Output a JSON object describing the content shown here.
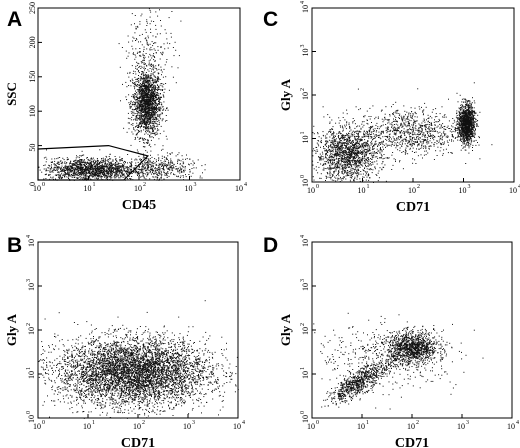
{
  "chart_data": [
    {
      "panel": "A",
      "type": "scatter",
      "xlabel": "CD45",
      "ylabel": "SSC",
      "x_scale": "log",
      "y_scale": "linear",
      "xlim": [
        1,
        10000
      ],
      "ylim": [
        0,
        250
      ],
      "x_ticks": [
        "10",
        "10",
        "10",
        "10",
        "10"
      ],
      "x_tick_exponents": [
        "0",
        "1",
        "2",
        "3",
        "4"
      ],
      "y_ticks": [
        "0",
        "50",
        "100",
        "150",
        "200",
        "250"
      ],
      "y_tick_values": [
        0,
        50,
        100,
        150,
        200,
        250
      ],
      "gate_polygon": [
        [
          1,
          45
        ],
        [
          25,
          50
        ],
        [
          150,
          35
        ],
        [
          50,
          0
        ],
        [
          1,
          0
        ]
      ],
      "populations": [
        {
          "label": "",
          "x_center_log": 2.15,
          "y_center": 112,
          "x_spread_log": 0.14,
          "y_spread": 24,
          "points": 1800
        },
        {
          "label": "",
          "x_center_log": 1.05,
          "y_center": 16,
          "x_spread_log": 0.45,
          "y_spread": 8,
          "points": 1500
        },
        {
          "label": "",
          "x_center_log": 2.4,
          "y_center": 18,
          "x_spread_log": 0.35,
          "y_spread": 10,
          "points": 450
        },
        {
          "label": "",
          "x_center_log": 2.2,
          "y_center": 190,
          "x_spread_log": 0.25,
          "y_spread": 30,
          "points": 220
        }
      ]
    },
    {
      "panel": "B",
      "type": "scatter",
      "xlabel": "CD71",
      "ylabel": "Gly A",
      "x_scale": "log",
      "y_scale": "log",
      "xlim": [
        1,
        10000
      ],
      "ylim": [
        1,
        10000
      ],
      "x_ticks": [
        "10",
        "10",
        "10",
        "10",
        "10"
      ],
      "x_tick_exponents": [
        "0",
        "1",
        "2",
        "3",
        "4"
      ],
      "y_ticks": [
        "10",
        "10",
        "10",
        "10",
        "10"
      ],
      "y_tick_exponents": [
        "0",
        "1",
        "2",
        "3",
        "4"
      ],
      "populations": [
        {
          "label": "",
          "x_center_log": 1.9,
          "y_center_log": 1.05,
          "x_spread_log": 0.75,
          "y_spread_log": 0.38,
          "points": 5200
        }
      ]
    },
    {
      "panel": "C",
      "type": "scatter",
      "xlabel": "CD71",
      "ylabel": "Gly A",
      "x_scale": "log",
      "y_scale": "log",
      "xlim": [
        1,
        10000
      ],
      "ylim": [
        1,
        10000
      ],
      "x_ticks": [
        "10",
        "10",
        "10",
        "10",
        "10"
      ],
      "x_tick_exponents": [
        "0",
        "1",
        "2",
        "3",
        "4"
      ],
      "y_ticks": [
        "10",
        "10",
        "10",
        "10",
        "10"
      ],
      "y_tick_exponents": [
        "0",
        "1",
        "2",
        "3",
        "4"
      ],
      "populations": [
        {
          "label": "",
          "x_center_log": 0.7,
          "y_center_log": 0.65,
          "x_spread_log": 0.32,
          "y_spread_log": 0.3,
          "points": 1500
        },
        {
          "label": "",
          "x_center_log": 3.05,
          "y_center_log": 1.35,
          "x_spread_log": 0.08,
          "y_spread_log": 0.22,
          "points": 1300
        },
        {
          "label": "",
          "x_center_log": 1.9,
          "y_center_log": 1.15,
          "x_spread_log": 0.5,
          "y_spread_log": 0.28,
          "points": 900
        }
      ]
    },
    {
      "panel": "D",
      "type": "scatter",
      "xlabel": "CD71",
      "ylabel": "Gly A",
      "x_scale": "log",
      "y_scale": "log",
      "xlim": [
        1,
        10000
      ],
      "ylim": [
        1,
        10000
      ],
      "x_ticks": [
        "10",
        "10",
        "10",
        "10",
        "10"
      ],
      "x_tick_exponents": [
        "0",
        "1",
        "2",
        "3",
        "4"
      ],
      "y_ticks": [
        "10",
        "10",
        "10",
        "10",
        "10"
      ],
      "y_tick_exponents": [
        "0",
        "1",
        "2",
        "3",
        "4"
      ],
      "populations": [
        {
          "label": "",
          "x_center_log": 2.0,
          "y_center_log": 1.6,
          "x_spread_log": 0.25,
          "y_spread_log": 0.18,
          "points": 1100
        },
        {
          "label": "",
          "x_center_log": 0.9,
          "y_center_log": 0.8,
          "x_spread_log": 0.28,
          "y_spread_log": 0.22,
          "points": 700,
          "correlated": true
        },
        {
          "label": "",
          "x_center_log": 1.5,
          "y_center_log": 1.4,
          "x_spread_log": 0.7,
          "y_spread_log": 0.35,
          "points": 500
        }
      ]
    }
  ]
}
